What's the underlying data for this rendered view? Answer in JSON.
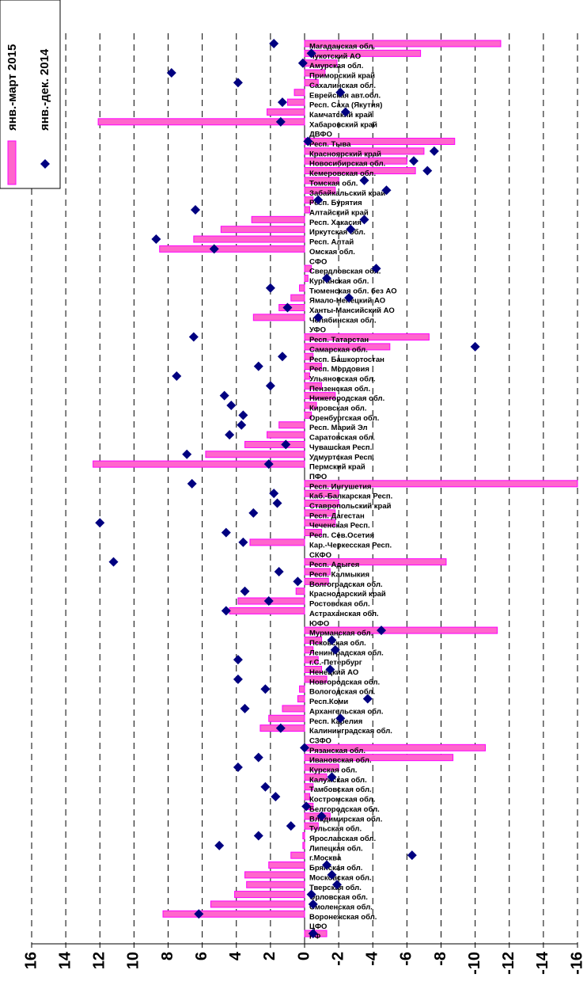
{
  "chart_data": {
    "type": "bar",
    "categories": [
      "РФ",
      "ЦФО",
      "Воронежская обл.",
      "Смоленская обл.",
      "Орловская обл.",
      "Тверская обл.",
      "Московская обл.",
      "Брянская обл.",
      "г.Москва",
      "Липецкая обл.",
      "Ярославская обл.",
      "Тульская обл.",
      "Владимирская обл.",
      "Белгородская обл.",
      "Костромская обл.",
      "Тамбовская обл.",
      "Калужская обл.",
      "Курская обл.",
      "Ивановская обл.",
      "Рязанская обл.",
      "СЗФО",
      "Калининградская обл.",
      "Респ. Карелия",
      "Архангельская обл.",
      "Респ.Коми",
      "Вологодская обл.",
      "Новгородская обл.",
      "Ненецкий АО",
      "г.С.-Петербург",
      "Ленинградская обл.",
      "Псковская обл.",
      "Мурманская обл.",
      "ЮФО",
      "Астраханская обл.",
      "Ростовская обл.",
      "Краснодарский край",
      "Волгоградская обл.",
      "Респ. Калмыкия",
      "Респ. Адыгея",
      "СКФО",
      "Кар.-Черкесская Респ.",
      "Респ. Сев.Осетия",
      "Чеченская Респ.",
      "Респ. Дагестан",
      "Ставропольский край",
      "Каб.-Балкарская Респ.",
      "Респ. Ингушетия",
      "ПФО",
      "Пермский край",
      "Удмуртская Респ.",
      "Чувашская Респ.",
      "Саратовская обл.",
      "Респ. Марий Эл",
      "Оренбургская обл.",
      "Кировская обл.",
      "Нижегородская обл.",
      "Пензенская обл.",
      "Ульяновская обл.",
      "Респ. Мордовия",
      "Респ. Башкортостан",
      "Самарская обл.",
      "Респ. Татарстан",
      "УФО",
      "Челябинская обл.",
      "Ханты-Мансийский АО",
      "Ямало-Ненецкий АО",
      "Тюменская обл. без АО",
      "Курганская обл.",
      "Свердловская обл.",
      "СФО",
      "Омская обл.",
      "Респ. Алтай",
      "Иркутская обл.",
      "Респ. Хакасия",
      "Алтайский край",
      "Респ. Бурятия",
      "Забайкальский край",
      "Томская обл.",
      "Кемеровская обл.",
      "Новосибирская обл.",
      "Красноярский край",
      "Респ. Тыва",
      "ДВФО",
      "Хабаровский край",
      "Камчатский край",
      "Респ. Саха (Якутия)",
      "Еврейская авт.обл.",
      "Сахалинская обл.",
      "Приморский край",
      "Амурская обл.",
      "Чукотский АО",
      "Магаданская обл."
    ],
    "series": [
      {
        "name": "янв.-март 2015",
        "color": "#ff66cc",
        "values": [
          -1.3,
          null,
          8.3,
          5.5,
          4.1,
          3.4,
          3.5,
          2.1,
          0.8,
          0.1,
          0.1,
          -0.8,
          -1.5,
          -0.5,
          -0.3,
          -0.5,
          -1.3,
          -2.0,
          -8.7,
          -10.6,
          null,
          2.6,
          2.1,
          1.3,
          0.4,
          0.3,
          -1.3,
          -1.0,
          -0.8,
          -0.5,
          -1.0,
          -11.3,
          null,
          4.4,
          3.9,
          0.5,
          -1.4,
          -1.5,
          -8.3,
          null,
          3.2,
          -1.0,
          -1.8,
          -1.8,
          -2.0,
          -2.0,
          -16.0,
          null,
          12.4,
          5.8,
          3.5,
          2.2,
          1.5,
          -0.4,
          -0.7,
          -1.8,
          -1.0,
          -0.3,
          -1.0,
          -0.5,
          -5.0,
          -7.3,
          null,
          3.0,
          1.5,
          0.8,
          0.3,
          -0.2,
          -0.4,
          null,
          8.5,
          6.5,
          4.9,
          3.1,
          -0.3,
          -0.5,
          -1.8,
          -2.0,
          -6.5,
          -6.0,
          -7.0,
          -8.8,
          null,
          12.1,
          2.2,
          1.0,
          0.6,
          -0.8,
          -1.2,
          -1.9,
          -6.8,
          -11.5
        ]
      },
      {
        "name": "янв.-дек. 2014",
        "color": "#000080",
        "values": [
          -0.5,
          null,
          6.2,
          -0.5,
          -0.4,
          -1.9,
          -1.6,
          -1.3,
          -6.3,
          5.0,
          2.7,
          0.8,
          -1.0,
          -0.1,
          1.7,
          2.3,
          -1.6,
          3.9,
          2.7,
          0.0,
          null,
          1.4,
          -2.1,
          3.5,
          -3.7,
          2.3,
          3.9,
          -1.5,
          3.9,
          -1.8,
          -1.6,
          -4.5,
          null,
          4.6,
          2.1,
          3.5,
          0.4,
          1.5,
          11.2,
          null,
          3.6,
          4.6,
          12.0,
          3.0,
          1.6,
          1.8,
          6.6,
          null,
          2.1,
          6.9,
          1.1,
          4.4,
          3.7,
          3.6,
          4.3,
          4.7,
          2.0,
          7.5,
          2.7,
          1.3,
          -10.0,
          6.5,
          null,
          -0.8,
          1.0,
          -2.6,
          2.0,
          -1.3,
          -4.2,
          null,
          5.3,
          8.7,
          -2.7,
          -3.5,
          6.4,
          -0.8,
          -4.8,
          -3.5,
          -7.2,
          -6.4,
          -7.6,
          -0.2,
          null,
          1.4,
          -2.4,
          1.3,
          -2.1,
          3.9,
          7.8,
          0.1,
          -0.4,
          1.8
        ]
      }
    ],
    "xlim": [
      16,
      -16
    ],
    "xticks": [
      16,
      14,
      12,
      10,
      8,
      6,
      4,
      2,
      0,
      -2,
      -4,
      -6,
      -8,
      -10,
      -12,
      -14,
      -16
    ],
    "grid": true
  }
}
